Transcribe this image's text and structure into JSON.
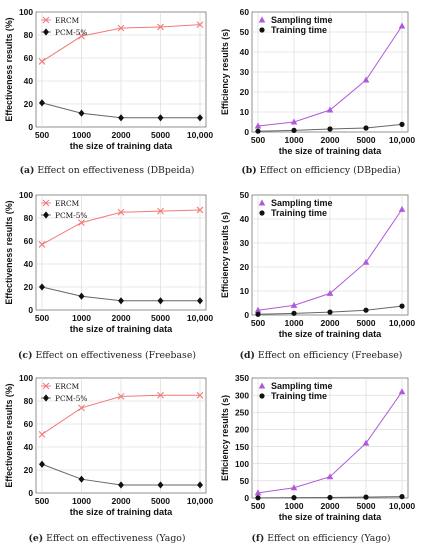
{
  "chart_data": [
    {
      "type": "line",
      "caption_letter": "(a)",
      "caption_text": "Effect on effectiveness (DBpeida)",
      "xlabel": "the size of training data",
      "ylabel": "Effectiveness results (%)",
      "categories": [
        "500",
        "1000",
        "2000",
        "5000",
        "10,000"
      ],
      "ylim": [
        0,
        100
      ],
      "yticks": [
        0,
        20,
        40,
        60,
        80,
        100
      ],
      "grid": true,
      "legend": "top-left",
      "series": [
        {
          "name": "ERCM",
          "values": [
            57,
            79,
            86,
            87,
            89
          ],
          "color": "#f27a7a",
          "marker": "x"
        },
        {
          "name": "PCM-5%",
          "values": [
            21,
            12,
            8,
            8,
            8
          ],
          "color": "#555555",
          "marker": "diamond"
        }
      ]
    },
    {
      "type": "line",
      "caption_letter": "(b)",
      "caption_text": "Effect on efficiency (DBpedia)",
      "xlabel": "the size of training data",
      "ylabel": "Efficiency results (s)",
      "categories": [
        "500",
        "1000",
        "2000",
        "5000",
        "10,000"
      ],
      "ylim": [
        0,
        60
      ],
      "yticks": [
        0,
        10,
        20,
        30,
        40,
        50,
        60
      ],
      "grid": true,
      "legend": "top-left",
      "series": [
        {
          "name": "Sampling time",
          "values": [
            3,
            5,
            11,
            26,
            53
          ],
          "color": "#b05ad9",
          "marker": "triangle"
        },
        {
          "name": "Training time",
          "values": [
            0.4,
            0.8,
            1.5,
            2.0,
            3.8
          ],
          "color": "#555555",
          "marker": "circle"
        }
      ]
    },
    {
      "type": "line",
      "caption_letter": "(c)",
      "caption_text": "Effect on effectiveness (Freebase)",
      "xlabel": "the size of training data",
      "ylabel": "Effectiveness results (%)",
      "categories": [
        "500",
        "1000",
        "2000",
        "5000",
        "10,000"
      ],
      "ylim": [
        0,
        100
      ],
      "yticks": [
        0,
        20,
        40,
        60,
        80,
        100
      ],
      "grid": true,
      "legend": "top-left",
      "series": [
        {
          "name": "ERCM",
          "values": [
            57,
            76,
            85,
            86,
            87
          ],
          "color": "#f27a7a",
          "marker": "x"
        },
        {
          "name": "PCM-5%",
          "values": [
            20,
            12,
            8,
            8,
            8
          ],
          "color": "#555555",
          "marker": "diamond"
        }
      ]
    },
    {
      "type": "line",
      "caption_letter": "(d)",
      "caption_text": "Effect on efficiency (Freebase)",
      "xlabel": "the size of training data",
      "ylabel": "Efficiency results (s)",
      "categories": [
        "500",
        "1000",
        "2000",
        "5000",
        "10,000"
      ],
      "ylim": [
        0,
        50
      ],
      "yticks": [
        0,
        10,
        20,
        30,
        40,
        50
      ],
      "grid": true,
      "legend": "top-left",
      "series": [
        {
          "name": "Sampling time",
          "values": [
            2,
            4,
            9,
            22,
            44
          ],
          "color": "#b05ad9",
          "marker": "triangle"
        },
        {
          "name": "Training time",
          "values": [
            0.3,
            0.7,
            1.2,
            2.0,
            3.7
          ],
          "color": "#555555",
          "marker": "circle"
        }
      ]
    },
    {
      "type": "line",
      "caption_letter": "(e)",
      "caption_text": "Effect on effectiveness (Yago)",
      "xlabel": "the size of training data",
      "ylabel": "Effectiveness results (%)",
      "categories": [
        "500",
        "1000",
        "2000",
        "5000",
        "10,000"
      ],
      "ylim": [
        0,
        100
      ],
      "yticks": [
        0,
        20,
        40,
        60,
        80,
        100
      ],
      "grid": true,
      "legend": "top-left",
      "series": [
        {
          "name": "ERCM",
          "values": [
            51,
            74,
            84,
            85,
            85
          ],
          "color": "#f27a7a",
          "marker": "x"
        },
        {
          "name": "PCM-5%",
          "values": [
            25,
            12,
            7,
            7,
            7
          ],
          "color": "#555555",
          "marker": "diamond"
        }
      ]
    },
    {
      "type": "line",
      "caption_letter": "(f)",
      "caption_text": "Effect on efficiency (Yago)",
      "xlabel": "the size of training data",
      "ylabel": "Efficiency results (s)",
      "categories": [
        "500",
        "1000",
        "2000",
        "5000",
        "10,000"
      ],
      "ylim": [
        0,
        350
      ],
      "yticks": [
        0,
        50,
        100,
        150,
        200,
        250,
        300,
        350
      ],
      "grid": true,
      "legend": "top-left",
      "series": [
        {
          "name": "Sampling time",
          "values": [
            15,
            30,
            62,
            160,
            310
          ],
          "color": "#b05ad9",
          "marker": "triangle"
        },
        {
          "name": "Training time",
          "values": [
            0.5,
            1,
            1.5,
            2.5,
            4
          ],
          "color": "#555555",
          "marker": "circle"
        }
      ]
    }
  ]
}
